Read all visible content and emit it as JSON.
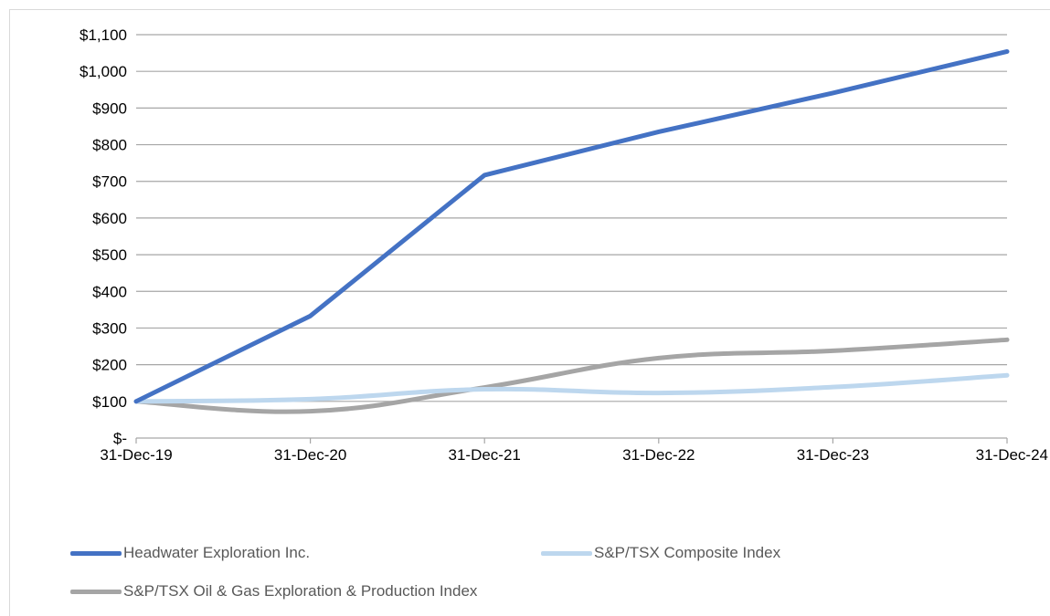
{
  "chart_data": {
    "type": "line",
    "categories": [
      "31-Dec-19",
      "31-Dec-20",
      "31-Dec-21",
      "31-Dec-22",
      "31-Dec-23",
      "31-Dec-24"
    ],
    "ylim": [
      0,
      1100
    ],
    "y_ticks": [
      0,
      100,
      200,
      300,
      400,
      500,
      600,
      700,
      800,
      900,
      1000,
      1100
    ],
    "y_tick_labels": [
      "$-",
      "$100",
      "$200",
      "$300",
      "$400",
      "$500",
      "$600",
      "$700",
      "$800",
      "$900",
      "$1,000",
      "$1,100"
    ],
    "grid": true,
    "legend_position": "bottom",
    "series": [
      {
        "name": "Headwater Exploration Inc.",
        "color": "#4472C4",
        "smooth": false,
        "values": [
          100,
          333,
          717,
          835,
          941,
          1054
        ]
      },
      {
        "name": "S&P/TSX Composite Index",
        "color": "#BDD7EE",
        "smooth": true,
        "values": [
          100,
          106,
          133,
          123,
          139,
          171
        ]
      },
      {
        "name": "S&P/TSX Oil & Gas Exploration & Production Index",
        "color": "#A5A5A5",
        "smooth": true,
        "values": [
          100,
          73,
          138,
          218,
          238,
          268
        ]
      }
    ]
  }
}
